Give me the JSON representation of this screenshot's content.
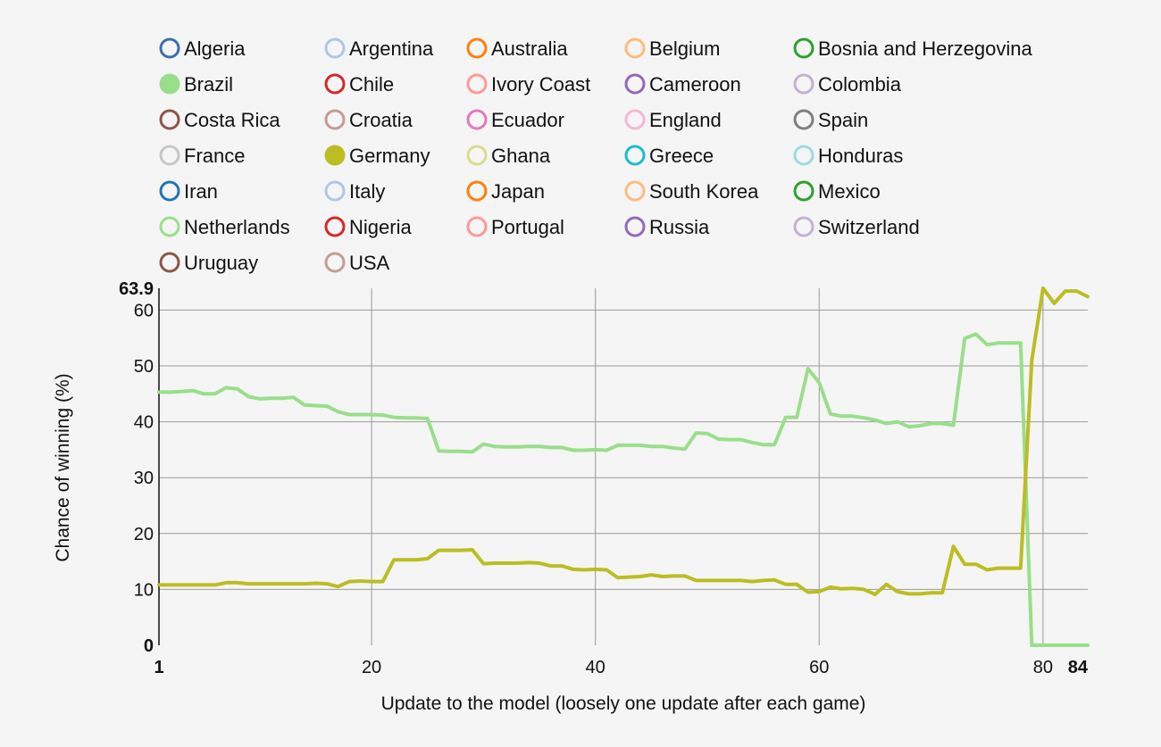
{
  "chart_data": {
    "type": "line",
    "xlabel": "Update to the model (loosely one update after each game)",
    "ylabel": "Chance of winning (%)",
    "xlim": [
      1,
      84
    ],
    "ylim": [
      0,
      63.9
    ],
    "x_ticks": [
      1,
      20,
      40,
      60,
      80,
      84
    ],
    "x_ticks_bold": [
      1,
      84
    ],
    "y_ticks": [
      0,
      10,
      20,
      30,
      40,
      50,
      60,
      63.9
    ],
    "y_ticks_bold": [
      0,
      63.9
    ],
    "x_grid": [
      20,
      40,
      60,
      80
    ],
    "y_grid": [
      10,
      20,
      30,
      40,
      50,
      60
    ],
    "legend_position": "top",
    "legend": [
      {
        "name": "Algeria",
        "color": "#3a6fb0",
        "filled": false
      },
      {
        "name": "Argentina",
        "color": "#aec7e8",
        "filled": false
      },
      {
        "name": "Australia",
        "color": "#ff7f0e",
        "filled": false
      },
      {
        "name": "Belgium",
        "color": "#ffbb78",
        "filled": false
      },
      {
        "name": "Bosnia and Herzegovina",
        "color": "#2ca02c",
        "filled": false
      },
      {
        "name": "Brazil",
        "color": "#98df8a",
        "filled": true
      },
      {
        "name": "Chile",
        "color": "#d62728",
        "filled": false
      },
      {
        "name": "Ivory Coast",
        "color": "#ff9896",
        "filled": false
      },
      {
        "name": "Cameroon",
        "color": "#9467bd",
        "filled": false
      },
      {
        "name": "Colombia",
        "color": "#c5b0d5",
        "filled": false
      },
      {
        "name": "Costa Rica",
        "color": "#8c564b",
        "filled": false
      },
      {
        "name": "Croatia",
        "color": "#c49c94",
        "filled": false
      },
      {
        "name": "Ecuador",
        "color": "#e377c2",
        "filled": false
      },
      {
        "name": "England",
        "color": "#f7b6d2",
        "filled": false
      },
      {
        "name": "Spain",
        "color": "#7f7f7f",
        "filled": false
      },
      {
        "name": "France",
        "color": "#c7c7c7",
        "filled": false
      },
      {
        "name": "Germany",
        "color": "#bcbd22",
        "filled": true
      },
      {
        "name": "Ghana",
        "color": "#dbdb8d",
        "filled": false
      },
      {
        "name": "Greece",
        "color": "#17becf",
        "filled": false
      },
      {
        "name": "Honduras",
        "color": "#9edae5",
        "filled": false
      },
      {
        "name": "Iran",
        "color": "#1f77b4",
        "filled": false
      },
      {
        "name": "Italy",
        "color": "#aec7e8",
        "filled": false
      },
      {
        "name": "Japan",
        "color": "#ff7f0e",
        "filled": false
      },
      {
        "name": "South Korea",
        "color": "#ffbb78",
        "filled": false
      },
      {
        "name": "Mexico",
        "color": "#2ca02c",
        "filled": false
      },
      {
        "name": "Netherlands",
        "color": "#98df8a",
        "filled": false
      },
      {
        "name": "Nigeria",
        "color": "#d62728",
        "filled": false
      },
      {
        "name": "Portugal",
        "color": "#ff9896",
        "filled": false
      },
      {
        "name": "Russia",
        "color": "#9467bd",
        "filled": false
      },
      {
        "name": "Switzerland",
        "color": "#c5b0d5",
        "filled": false
      },
      {
        "name": "Uruguay",
        "color": "#8c564b",
        "filled": false
      },
      {
        "name": "USA",
        "color": "#c49c94",
        "filled": false
      }
    ],
    "series": [
      {
        "name": "Brazil",
        "color": "#98df8a",
        "points": [
          [
            1,
            45.3
          ],
          [
            2,
            45.3
          ],
          [
            3,
            45.4
          ],
          [
            4,
            45.6
          ],
          [
            5,
            45.0
          ],
          [
            6,
            45.0
          ],
          [
            7,
            46.1
          ],
          [
            8,
            45.9
          ],
          [
            9,
            44.5
          ],
          [
            10,
            44.1
          ],
          [
            11,
            44.2
          ],
          [
            12,
            44.2
          ],
          [
            13,
            44.4
          ],
          [
            14,
            43.0
          ],
          [
            15,
            42.9
          ],
          [
            16,
            42.8
          ],
          [
            17,
            41.8
          ],
          [
            18,
            41.3
          ],
          [
            19,
            41.3
          ],
          [
            20,
            41.3
          ],
          [
            21,
            41.2
          ],
          [
            22,
            40.8
          ],
          [
            23,
            40.7
          ],
          [
            24,
            40.7
          ],
          [
            25,
            40.6
          ],
          [
            26,
            34.8
          ],
          [
            27,
            34.7
          ],
          [
            28,
            34.7
          ],
          [
            29,
            34.6
          ],
          [
            30,
            36.0
          ],
          [
            31,
            35.6
          ],
          [
            32,
            35.5
          ],
          [
            33,
            35.5
          ],
          [
            34,
            35.6
          ],
          [
            35,
            35.6
          ],
          [
            36,
            35.4
          ],
          [
            37,
            35.4
          ],
          [
            38,
            34.9
          ],
          [
            39,
            34.9
          ],
          [
            40,
            35.0
          ],
          [
            41,
            34.9
          ],
          [
            42,
            35.8
          ],
          [
            43,
            35.8
          ],
          [
            44,
            35.8
          ],
          [
            45,
            35.6
          ],
          [
            46,
            35.6
          ],
          [
            47,
            35.3
          ],
          [
            48,
            35.1
          ],
          [
            49,
            38.0
          ],
          [
            50,
            37.9
          ],
          [
            51,
            36.9
          ],
          [
            52,
            36.8
          ],
          [
            53,
            36.8
          ],
          [
            54,
            36.3
          ],
          [
            55,
            35.9
          ],
          [
            56,
            35.9
          ],
          [
            57,
            40.8
          ],
          [
            58,
            40.8
          ],
          [
            59,
            49.5
          ],
          [
            60,
            47.0
          ],
          [
            61,
            41.4
          ],
          [
            62,
            41.0
          ],
          [
            63,
            41.0
          ],
          [
            64,
            40.7
          ],
          [
            65,
            40.3
          ],
          [
            66,
            39.7
          ],
          [
            67,
            40.0
          ],
          [
            68,
            39.1
          ],
          [
            69,
            39.3
          ],
          [
            70,
            39.7
          ],
          [
            71,
            39.7
          ],
          [
            72,
            39.4
          ],
          [
            73,
            54.9
          ],
          [
            74,
            55.7
          ],
          [
            75,
            53.8
          ],
          [
            76,
            54.1
          ],
          [
            77,
            54.1
          ],
          [
            78,
            54.1
          ],
          [
            79,
            0
          ],
          [
            80,
            0
          ],
          [
            81,
            0
          ],
          [
            82,
            0
          ],
          [
            83,
            0
          ],
          [
            84,
            0
          ]
        ]
      },
      {
        "name": "Germany",
        "color": "#bcbd22",
        "points": [
          [
            1,
            10.8
          ],
          [
            2,
            10.8
          ],
          [
            3,
            10.8
          ],
          [
            4,
            10.8
          ],
          [
            5,
            10.8
          ],
          [
            6,
            10.8
          ],
          [
            7,
            11.2
          ],
          [
            8,
            11.2
          ],
          [
            9,
            11.0
          ],
          [
            10,
            11.0
          ],
          [
            11,
            11.0
          ],
          [
            12,
            11.0
          ],
          [
            13,
            11.0
          ],
          [
            14,
            11.0
          ],
          [
            15,
            11.1
          ],
          [
            16,
            11.0
          ],
          [
            17,
            10.5
          ],
          [
            18,
            11.4
          ],
          [
            19,
            11.5
          ],
          [
            20,
            11.4
          ],
          [
            21,
            11.4
          ],
          [
            22,
            15.3
          ],
          [
            23,
            15.3
          ],
          [
            24,
            15.3
          ],
          [
            25,
            15.5
          ],
          [
            26,
            17.0
          ],
          [
            27,
            17.0
          ],
          [
            28,
            17.0
          ],
          [
            29,
            17.1
          ],
          [
            30,
            14.6
          ],
          [
            31,
            14.7
          ],
          [
            32,
            14.7
          ],
          [
            33,
            14.7
          ],
          [
            34,
            14.8
          ],
          [
            35,
            14.7
          ],
          [
            36,
            14.2
          ],
          [
            37,
            14.2
          ],
          [
            38,
            13.6
          ],
          [
            39,
            13.5
          ],
          [
            40,
            13.6
          ],
          [
            41,
            13.5
          ],
          [
            42,
            12.1
          ],
          [
            43,
            12.2
          ],
          [
            44,
            12.3
          ],
          [
            45,
            12.6
          ],
          [
            46,
            12.3
          ],
          [
            47,
            12.4
          ],
          [
            48,
            12.4
          ],
          [
            49,
            11.6
          ],
          [
            50,
            11.6
          ],
          [
            51,
            11.6
          ],
          [
            52,
            11.6
          ],
          [
            53,
            11.6
          ],
          [
            54,
            11.4
          ],
          [
            55,
            11.6
          ],
          [
            56,
            11.7
          ],
          [
            57,
            10.9
          ],
          [
            58,
            10.9
          ],
          [
            59,
            9.5
          ],
          [
            60,
            9.6
          ],
          [
            61,
            10.4
          ],
          [
            62,
            10.1
          ],
          [
            63,
            10.2
          ],
          [
            64,
            10.0
          ],
          [
            65,
            9.1
          ],
          [
            66,
            10.9
          ],
          [
            67,
            9.6
          ],
          [
            68,
            9.2
          ],
          [
            69,
            9.2
          ],
          [
            70,
            9.4
          ],
          [
            71,
            9.4
          ],
          [
            72,
            17.7
          ],
          [
            73,
            14.5
          ],
          [
            74,
            14.5
          ],
          [
            75,
            13.5
          ],
          [
            76,
            13.8
          ],
          [
            77,
            13.8
          ],
          [
            78,
            13.8
          ],
          [
            79,
            51.0
          ],
          [
            80,
            63.9
          ],
          [
            81,
            61.2
          ],
          [
            82,
            63.4
          ],
          [
            83,
            63.4
          ],
          [
            84,
            62.4
          ]
        ]
      }
    ]
  }
}
